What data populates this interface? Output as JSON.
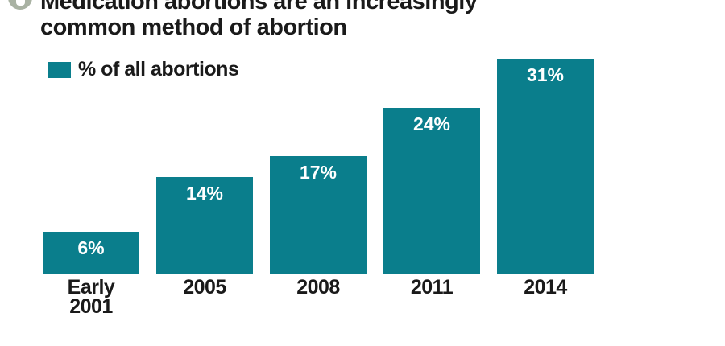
{
  "figure": {
    "title_line1": "Medication abortions are an increasingly",
    "title_line2": "common method of abortion",
    "legend_label": "% of all abortions"
  },
  "colors": {
    "background": "#ffffff",
    "bar": "#0a7e8c",
    "title_text": "#1a1a1a",
    "axis_label_text": "#1a1a1a",
    "value_label_text": "#ffffff",
    "icon_circle": "#a9b2a3"
  },
  "chart_data": {
    "type": "bar",
    "title": "Medication abortions are an increasingly common method of abortion",
    "legend": [
      "% of all abortions"
    ],
    "legend_position": "top-left",
    "categories": [
      "Early 2001",
      "2005",
      "2008",
      "2011",
      "2014"
    ],
    "x_display_labels": [
      "Early\n2001",
      "2005",
      "2008",
      "2011",
      "2014"
    ],
    "values": [
      6,
      14,
      17,
      24,
      31
    ],
    "value_labels": [
      "6%",
      "14%",
      "17%",
      "24%",
      "31%"
    ],
    "unit": "% of all abortions",
    "ylim": [
      0,
      33
    ],
    "grid": false,
    "axis_lines": false,
    "bar_color": "#0a7e8c",
    "value_label_position": "inside-top",
    "value_label_color": "#ffffff"
  }
}
